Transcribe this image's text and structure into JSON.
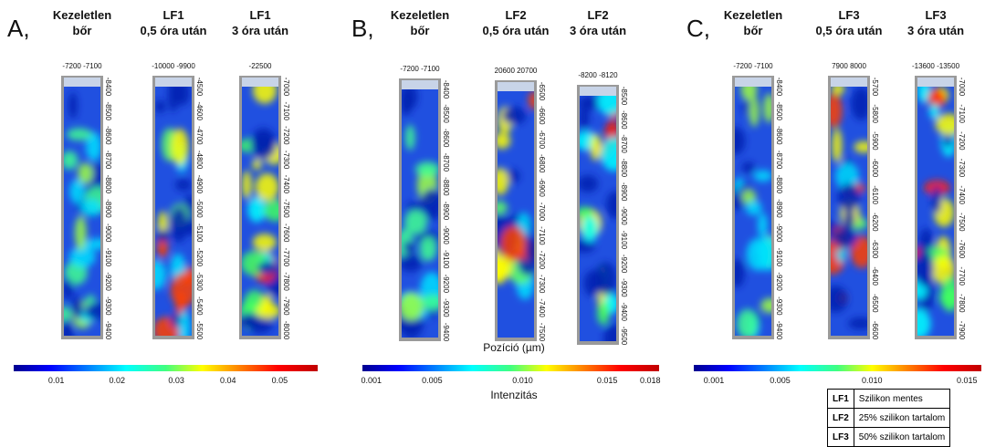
{
  "panels": [
    {
      "letter": "A,",
      "colorbar_ticks": [
        "0.01",
        "0.02",
        "0.03",
        "0.04",
        "0.05"
      ],
      "columns": [
        {
          "title": [
            "Kezeletlen",
            "bőr"
          ],
          "top_label": "-7200 -7100",
          "yticks": [
            "-8400",
            "-8500",
            "-8600",
            "-8700",
            "-8800",
            "-8900",
            "-9000",
            "-9100",
            "-9200",
            "-9300",
            "-9400"
          ]
        },
        {
          "title": [
            "LF1",
            "0,5 óra után"
          ],
          "top_label": "-10000 -9900",
          "yticks": [
            "-4500",
            "-4600",
            "-4700",
            "-4800",
            "-4900",
            "-5000",
            "-5100",
            "-5200",
            "-5300",
            "-5400",
            "-5500"
          ]
        },
        {
          "title": [
            "LF1",
            "3 óra után"
          ],
          "top_label": "-22500",
          "yticks": [
            "-7000",
            "-7100",
            "-7200",
            "-7300",
            "-7400",
            "-7500",
            "-7600",
            "-7700",
            "-7800",
            "-7900",
            "-8000"
          ]
        }
      ]
    },
    {
      "letter": "B,",
      "colorbar_ticks": [
        "0.001",
        "0.005",
        "0.010",
        "0.015",
        "0.018"
      ],
      "position_label": "Pozíció (µm)",
      "intensity_label": "Intenzitás",
      "columns": [
        {
          "title": [
            "Kezeletlen",
            "bőr"
          ],
          "top_label": "-7200 -7100",
          "yticks": [
            "-8400",
            "-8500",
            "-8600",
            "-8700",
            "-8800",
            "-8900",
            "-9000",
            "-9100",
            "-9200",
            "-9300",
            "-9400"
          ]
        },
        {
          "title": [
            "LF2",
            "0,5 óra után"
          ],
          "top_label": "20600 20700",
          "yticks": [
            "-6500",
            "-6600",
            "-6700",
            "-6800",
            "-6900",
            "-7000",
            "-7100",
            "-7200",
            "-7300",
            "-7400",
            "-7500"
          ]
        },
        {
          "title": [
            "LF2",
            "3 óra után"
          ],
          "top_label": "-8200 -8120",
          "yticks": [
            "-8500",
            "-8600",
            "-8700",
            "-8800",
            "-8900",
            "-9000",
            "-9100",
            "-9200",
            "-9300",
            "-9400",
            "-9500"
          ]
        }
      ]
    },
    {
      "letter": "C,",
      "colorbar_ticks": [
        "0.001",
        "0.005",
        "0.010",
        "0.015"
      ],
      "columns": [
        {
          "title": [
            "Kezeletlen",
            "bőr"
          ],
          "top_label": "-7200 -7100",
          "yticks": [
            "-8400",
            "-8500",
            "-8600",
            "-8700",
            "-8800",
            "-8900",
            "-9000",
            "-9100",
            "-9200",
            "-9300",
            "-9400"
          ]
        },
        {
          "title": [
            "LF3",
            "0,5 óra után"
          ],
          "top_label": "7900 8000",
          "yticks": [
            "-5700",
            "-5800",
            "-5900",
            "-6000",
            "-6100",
            "-6200",
            "-6300",
            "-6400",
            "-6500",
            "-6600"
          ]
        },
        {
          "title": [
            "LF3",
            "3 óra után"
          ],
          "top_label": "-13600 -13500",
          "yticks": [
            "-7000",
            "-7100",
            "-7200",
            "-7300",
            "-7400",
            "-7500",
            "-7600",
            "-7700",
            "-7800",
            "-7900"
          ]
        }
      ]
    }
  ],
  "legend": [
    [
      "LF1",
      "Szilikon mentes"
    ],
    [
      "LF2",
      "25% szilikon tartalom"
    ],
    [
      "LF3",
      "50% szilikon tartalom"
    ]
  ]
}
